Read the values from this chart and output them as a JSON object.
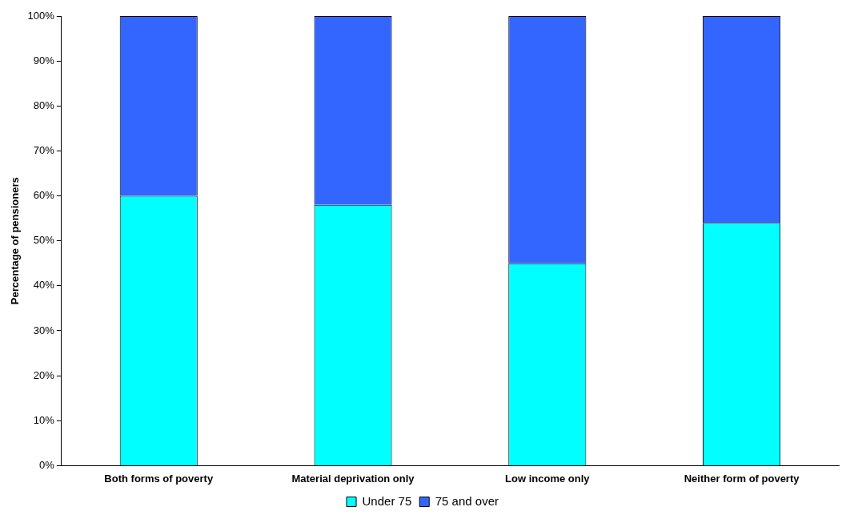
{
  "chart_data": {
    "type": "bar",
    "stacked": true,
    "ylabel": "Percentage of pensioners",
    "categories": [
      "Both forms of poverty",
      "Material deprivation only",
      "Low income only",
      "Neither form of poverty"
    ],
    "series": [
      {
        "name": "Under 75",
        "color": "#00ffff",
        "values": [
          60,
          58,
          45,
          54
        ]
      },
      {
        "name": "75 and over",
        "color": "#3366ff",
        "values": [
          40,
          42,
          55,
          46
        ]
      }
    ],
    "ylim": [
      0,
      100
    ],
    "yticks": [
      {
        "value": 0,
        "label": "0%"
      },
      {
        "value": 10,
        "label": "10%"
      },
      {
        "value": 20,
        "label": "20%"
      },
      {
        "value": 30,
        "label": "30%"
      },
      {
        "value": 40,
        "label": "40%"
      },
      {
        "value": 50,
        "label": "50%"
      },
      {
        "value": 60,
        "label": "60%"
      },
      {
        "value": 70,
        "label": "70%"
      },
      {
        "value": 80,
        "label": "80%"
      },
      {
        "value": 90,
        "label": "90%"
      },
      {
        "value": 100,
        "label": "100%"
      }
    ],
    "grid": false,
    "legend": "bottom"
  }
}
